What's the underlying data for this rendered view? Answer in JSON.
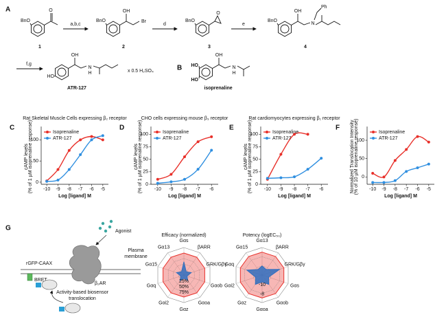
{
  "scheme": {
    "panel": "A",
    "compounds": [
      {
        "label": "1",
        "atoms": [
          "BnO",
          "O"
        ]
      },
      {
        "label": "2",
        "atoms": [
          "BnO",
          "OH",
          "Br"
        ]
      },
      {
        "label": "3",
        "atoms": [
          "BnO",
          "O"
        ]
      },
      {
        "label": "4",
        "atoms": [
          "BnO",
          "OH",
          "N",
          "Ph"
        ]
      },
      {
        "label": "ATR-127",
        "atoms": [
          "HO",
          "OH",
          "N",
          "H"
        ]
      }
    ],
    "reagents": [
      "a,b,c",
      "d",
      "e",
      "f,g"
    ],
    "salt": "x 0.5 H₂SO₄"
  },
  "isoprenaline": {
    "panel": "B",
    "label": "isoprenaline",
    "atoms": [
      "HO",
      "HO",
      "OH",
      "N",
      "H"
    ]
  },
  "diagram": {
    "panel": "G",
    "agonist": "Agonist",
    "membrane": [
      "Plasma",
      "membrane"
    ],
    "anchor": "rGFP-CAAX",
    "bret": "BRET",
    "receptor": "β₂AR",
    "translocation": [
      "Activity-based biosensor",
      "translocation"
    ]
  },
  "chart_data": [
    {
      "type": "line",
      "panel": "C",
      "title": "Rat Skeletal Muscle Cells expressing β₂ receptor",
      "xlabel": "Log [ligand] M",
      "ylabel": [
        "cAMP levels",
        "(% of 1 µM isoprenaline response)"
      ],
      "x": [
        -10,
        -9,
        -8,
        -7,
        -6,
        -5
      ],
      "xlim": [
        -10.5,
        -4.5
      ],
      "xticks": [
        -10,
        -9,
        -8,
        -7,
        -6,
        -5
      ],
      "ylim": [
        -5,
        125
      ],
      "yticks": [
        0,
        50,
        100
      ],
      "series": [
        {
          "name": "Isoprenaline",
          "color": "#e8302a",
          "values": [
            3,
            30,
            75,
            100,
            108,
            100
          ]
        },
        {
          "name": "ATR-127",
          "color": "#2f8fe0",
          "values": [
            2,
            5,
            30,
            65,
            100,
            110
          ]
        }
      ]
    },
    {
      "type": "line",
      "panel": "D",
      "title": "CHO cells expressing mouse β₃ receptor",
      "xlabel": "Log [ligand] M",
      "ylabel": [
        "cAMP levels",
        "(% of 1 µM isoprenaline response)"
      ],
      "x": [
        -10,
        -9,
        -8,
        -7,
        -6
      ],
      "xlim": [
        -10.5,
        -5.5
      ],
      "xticks": [
        -10,
        -9,
        -8,
        -7,
        -6
      ],
      "ylim": [
        0,
        110
      ],
      "yticks": [
        0,
        25,
        50,
        75,
        100
      ],
      "series": [
        {
          "name": "Isoprenaline",
          "color": "#e8302a",
          "values": [
            10,
            20,
            55,
            85,
            95
          ]
        },
        {
          "name": "ATR-127",
          "color": "#2f8fe0",
          "values": [
            2,
            5,
            10,
            30,
            68
          ]
        }
      ]
    },
    {
      "type": "line",
      "panel": "E",
      "title": "Rat cardiomyocytes expressing β₁ receptor",
      "xlabel": "Log [ligand] M",
      "ylabel": [
        "cAMP levels",
        "(% of 1 µM isoprenaline response)"
      ],
      "x": [
        -10,
        -9,
        -8,
        -7,
        -6
      ],
      "xlim": [
        -10.5,
        -5.5
      ],
      "xticks": [
        -10,
        -9,
        -8,
        -7,
        -6
      ],
      "ylim": [
        0,
        110
      ],
      "yticks": [
        0,
        25,
        50,
        75,
        100
      ],
      "series": [
        {
          "name": "Isoprenaline",
          "color": "#e8302a",
          "values": [
            10,
            60,
            100,
            100,
            null
          ]
        },
        {
          "name": "ATR-127",
          "color": "#2f8fe0",
          "values": [
            12,
            13,
            15,
            30,
            52
          ]
        }
      ]
    },
    {
      "type": "line",
      "panel": "F",
      "xlabel": "Log [ligand] M",
      "ylabel": [
        "Normalized Translocation Intensity",
        "(% of 10 µM isoprenaline response)"
      ],
      "x": [
        -10,
        -9,
        -8,
        -7,
        -6,
        -5
      ],
      "xlim": [
        -10.5,
        -4.5
      ],
      "xticks": [
        -10,
        -9,
        -8,
        -7,
        -6,
        -5
      ],
      "ylim": [
        -20,
        130
      ],
      "yticks": [
        0,
        50,
        100
      ],
      "series": [
        {
          "name": "Isoprenaline",
          "color": "#e8302a",
          "values": [
            10,
            0,
            45,
            75,
            110,
            95
          ]
        },
        {
          "name": "ATR-127",
          "color": "#2f8fe0",
          "values": [
            -15,
            -15,
            -10,
            15,
            25,
            35
          ]
        }
      ]
    },
    {
      "type": "radar",
      "title": "Efficacy (normalized)",
      "axes": [
        "Gαs",
        "βARR",
        "GRK/Gβγ",
        "Gαob",
        "Gαoa",
        "Gαz",
        "Gαi2",
        "Gαq",
        "Gα15",
        "Gα13"
      ],
      "rlim": [
        0,
        125
      ],
      "rticks": [
        {
          "value": 25,
          "label": "25%"
        },
        {
          "value": 50,
          "label": "50%"
        },
        {
          "value": 75,
          "label": "75%"
        }
      ],
      "series": [
        {
          "color": "#e8302a",
          "values": [
            100,
            100,
            100,
            100,
            100,
            100,
            100,
            100,
            100,
            100
          ]
        },
        {
          "color": "#2f6fc0",
          "values": [
            60,
            18,
            35,
            15,
            30,
            15,
            30,
            15,
            35,
            18
          ]
        }
      ]
    },
    {
      "type": "radar",
      "title": "Potency (logEC₅₀)",
      "axes": [
        "Gα13",
        "βARR",
        "GRK/Gβγ",
        "Gαs",
        "Gαob",
        "Gαoa",
        "Gαz",
        "Gαi2",
        "Gαq",
        "Gα15"
      ],
      "rlim": [
        -12,
        -6
      ],
      "rticks": [
        -10,
        -8
      ],
      "series": [
        {
          "color": "#e8302a",
          "values": [
            -7,
            -7,
            -7,
            -7,
            -7,
            -7,
            -7,
            -7,
            -7,
            -7
          ]
        },
        {
          "color": "#2f6fc0",
          "values": [
            -10,
            -10.5,
            -8,
            -10.5,
            -9.5,
            -10.5,
            -9.5,
            -10.5,
            -8.5,
            -10.5
          ]
        }
      ]
    }
  ]
}
